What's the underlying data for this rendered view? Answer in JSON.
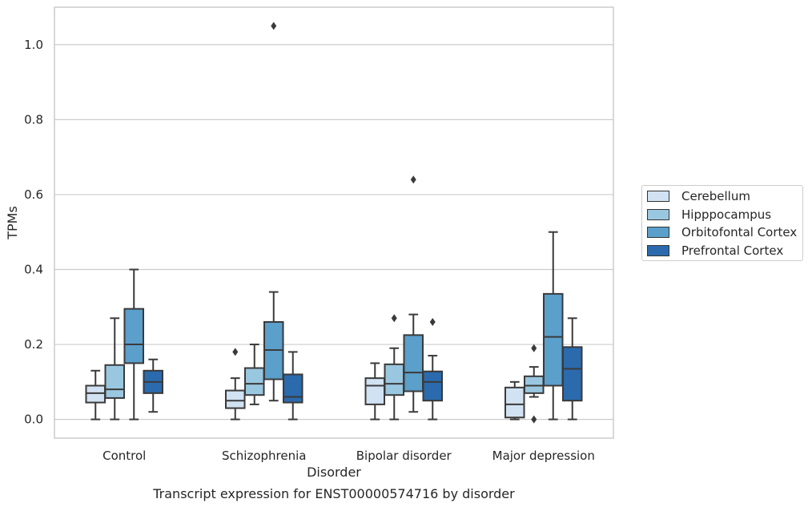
{
  "chart_data": {
    "type": "box",
    "title": "Transcript expression for ENST00000574716 by disorder",
    "xlabel": "Disorder",
    "ylabel": "TPMs",
    "ylim": [
      -0.05,
      1.1
    ],
    "yticks": [
      "0.0",
      "0.2",
      "0.4",
      "0.6",
      "0.8",
      "1.0"
    ],
    "grid": "horizontal",
    "legend_placement": "right",
    "categories": [
      "Control",
      "Schizophrenia",
      "Bipolar disorder",
      "Major depression"
    ],
    "series": [
      {
        "name": "Cerebellum",
        "color": "#d1e2f2",
        "boxes": [
          {
            "whislo": 0.0,
            "q1": 0.045,
            "med": 0.07,
            "q3": 0.09,
            "whishi": 0.13,
            "fliers": []
          },
          {
            "whislo": 0.0,
            "q1": 0.03,
            "med": 0.05,
            "q3": 0.077,
            "whishi": 0.11,
            "fliers": [
              0.18
            ]
          },
          {
            "whislo": 0.0,
            "q1": 0.04,
            "med": 0.09,
            "q3": 0.11,
            "whishi": 0.15,
            "fliers": []
          },
          {
            "whislo": 0.0,
            "q1": 0.005,
            "med": 0.04,
            "q3": 0.085,
            "whishi": 0.1,
            "fliers": []
          }
        ]
      },
      {
        "name": "Hipppocampus",
        "color": "#9ac7e0",
        "boxes": [
          {
            "whislo": 0.0,
            "q1": 0.057,
            "med": 0.08,
            "q3": 0.145,
            "whishi": 0.27,
            "fliers": []
          },
          {
            "whislo": 0.04,
            "q1": 0.065,
            "med": 0.095,
            "q3": 0.137,
            "whishi": 0.2,
            "fliers": []
          },
          {
            "whislo": 0.0,
            "q1": 0.065,
            "med": 0.095,
            "q3": 0.147,
            "whishi": 0.19,
            "fliers": [
              0.27
            ]
          },
          {
            "whislo": 0.06,
            "q1": 0.07,
            "med": 0.09,
            "q3": 0.115,
            "whishi": 0.14,
            "fliers": [
              0.19,
              0.0
            ]
          }
        ]
      },
      {
        "name": "Orbitofontal Cortex",
        "color": "#5b9fcb",
        "boxes": [
          {
            "whislo": 0.0,
            "q1": 0.15,
            "med": 0.2,
            "q3": 0.295,
            "whishi": 0.4,
            "fliers": []
          },
          {
            "whislo": 0.05,
            "q1": 0.107,
            "med": 0.185,
            "q3": 0.26,
            "whishi": 0.34,
            "fliers": [
              1.05
            ]
          },
          {
            "whislo": 0.02,
            "q1": 0.075,
            "med": 0.125,
            "q3": 0.225,
            "whishi": 0.28,
            "fliers": [
              0.64
            ]
          },
          {
            "whislo": 0.0,
            "q1": 0.09,
            "med": 0.22,
            "q3": 0.335,
            "whishi": 0.5,
            "fliers": []
          }
        ]
      },
      {
        "name": "Prefrontal Cortex",
        "color": "#2b6aad",
        "boxes": [
          {
            "whislo": 0.02,
            "q1": 0.07,
            "med": 0.1,
            "q3": 0.13,
            "whishi": 0.16,
            "fliers": []
          },
          {
            "whislo": 0.0,
            "q1": 0.045,
            "med": 0.06,
            "q3": 0.12,
            "whishi": 0.18,
            "fliers": []
          },
          {
            "whislo": 0.0,
            "q1": 0.05,
            "med": 0.1,
            "q3": 0.128,
            "whishi": 0.17,
            "fliers": [
              0.26
            ]
          },
          {
            "whislo": 0.0,
            "q1": 0.05,
            "med": 0.135,
            "q3": 0.193,
            "whishi": 0.27,
            "fliers": []
          }
        ]
      }
    ]
  }
}
